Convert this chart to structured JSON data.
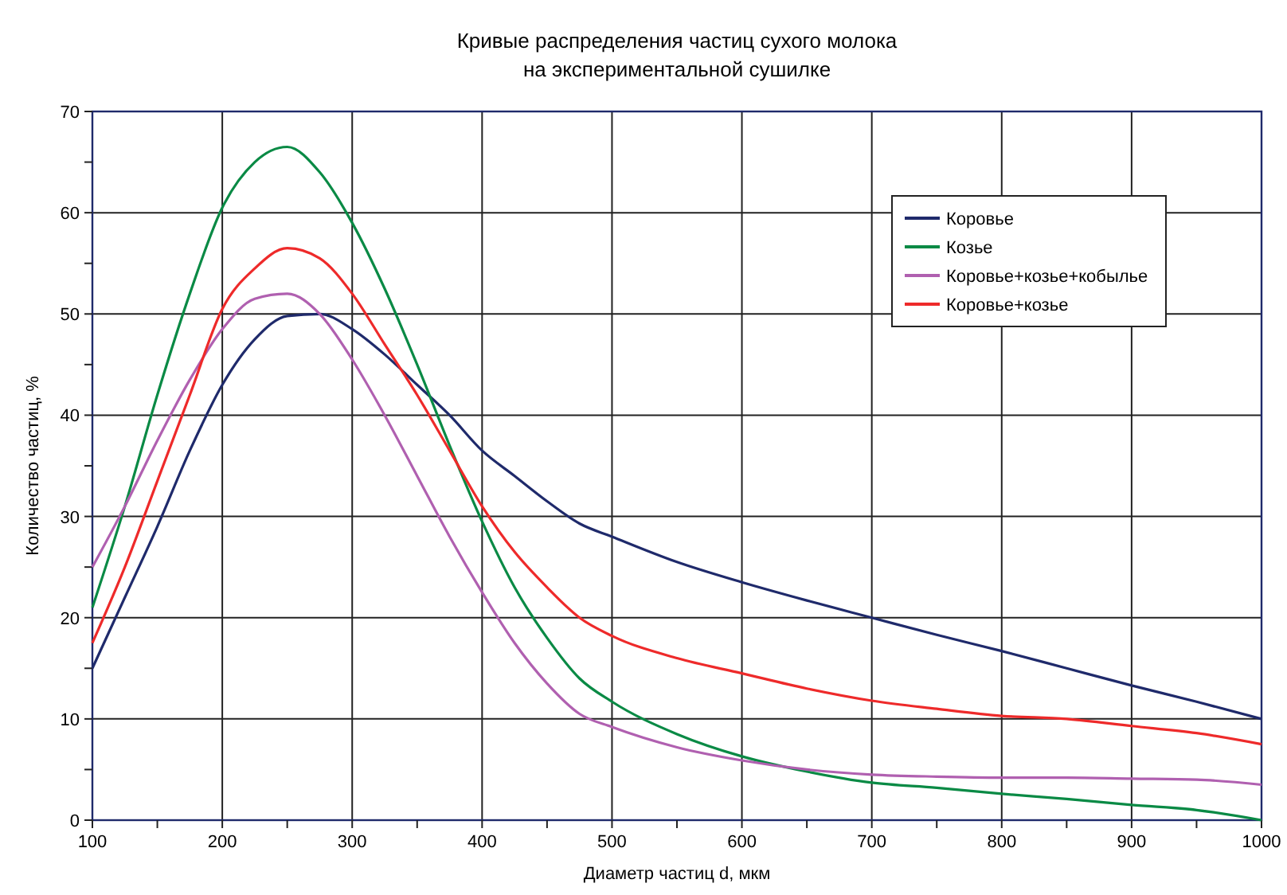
{
  "chart_data": {
    "type": "line",
    "title": "Кривые распределения частиц сухого молока\nна экспериментальной сушилке",
    "xlabel": "Диаметр частиц d, мкм",
    "ylabel": "Количество частиц, %",
    "x": [
      100,
      125,
      150,
      175,
      200,
      225,
      250,
      275,
      300,
      325,
      350,
      375,
      400,
      425,
      450,
      475,
      500,
      550,
      600,
      650,
      700,
      750,
      800,
      850,
      900,
      950,
      1000
    ],
    "xlim": [
      100,
      1000
    ],
    "ylim": [
      0,
      70
    ],
    "xticks": [
      100,
      {
        "value": 150,
        "label": null
      },
      200,
      {
        "value": 250,
        "label": null
      },
      300,
      {
        "value": 350,
        "label": null
      },
      400,
      {
        "value": 450,
        "label": null
      },
      500,
      {
        "value": 550,
        "label": null
      },
      600,
      {
        "value": 650,
        "label": null
      },
      700,
      {
        "value": 750,
        "label": null
      },
      800,
      {
        "value": 850,
        "label": null
      },
      900,
      {
        "value": 950,
        "label": null
      },
      1000
    ],
    "yticks": [
      0,
      {
        "value": 5,
        "label": null
      },
      10,
      {
        "value": 15,
        "label": null
      },
      20,
      {
        "value": 25,
        "label": null
      },
      30,
      {
        "value": 35,
        "label": null
      },
      40,
      {
        "value": 45,
        "label": null
      },
      50,
      {
        "value": 55,
        "label": null
      },
      60,
      {
        "value": 65,
        "label": null
      },
      70
    ],
    "grid": true,
    "legend": "top right",
    "marker": "none",
    "line_style": "solid",
    "series": [
      {
        "name": "Коровье",
        "color": "#1f2a6b",
        "values": [
          15,
          22,
          29,
          36.5,
          43,
          47.5,
          49.8,
          50,
          48.5,
          46,
          43,
          40,
          36.5,
          34,
          31.5,
          29.3,
          28,
          25.5,
          23.5,
          21.7,
          20,
          18.3,
          16.7,
          15,
          13.3,
          11.7,
          10
        ]
      },
      {
        "name": "Козье",
        "color": "#0a8a45",
        "values": [
          21,
          31,
          42,
          52,
          60.5,
          65,
          66.5,
          64,
          59,
          52.5,
          45,
          37,
          29.5,
          23,
          18,
          14,
          11.7,
          8.5,
          6.3,
          4.8,
          3.7,
          3.2,
          2.6,
          2.1,
          1.5,
          1,
          0
        ]
      },
      {
        "name": "Коровье+козье+кобылье",
        "color": "#b060b0",
        "values": [
          25,
          31,
          37.5,
          43.5,
          48.5,
          51.5,
          52,
          50,
          45.5,
          40,
          34,
          28,
          22.5,
          17.5,
          13.5,
          10.5,
          9.2,
          7.2,
          5.9,
          5,
          4.5,
          4.3,
          4.2,
          4.2,
          4.1,
          4,
          3.5
        ]
      },
      {
        "name": "Коровье+козье",
        "color": "#ee2a2a",
        "values": [
          17.5,
          25,
          33.5,
          42,
          50.5,
          54.5,
          56.5,
          55.5,
          52,
          47,
          42,
          36.5,
          31,
          26.5,
          23,
          20,
          18.2,
          16,
          14.5,
          13,
          11.8,
          11,
          10.3,
          10,
          9.3,
          8.6,
          7.5
        ]
      }
    ]
  }
}
